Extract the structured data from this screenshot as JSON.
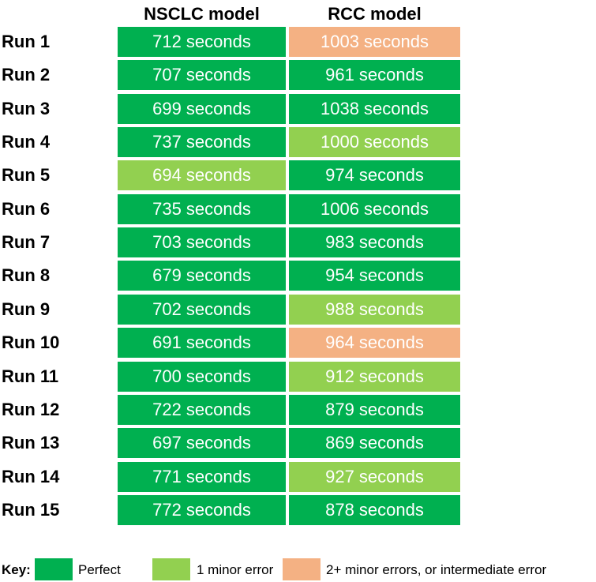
{
  "colors": {
    "perfect": "#00b050",
    "minor": "#92d050",
    "major": "#f4b183"
  },
  "chart_data": {
    "type": "table",
    "columns": [
      "NSCLC model",
      "RCC model"
    ],
    "rows": [
      {
        "label": "Run 1",
        "values": [
          "712 seconds",
          "1003 seconds"
        ],
        "status": [
          "perfect",
          "major"
        ]
      },
      {
        "label": "Run 2",
        "values": [
          "707 seconds",
          "961 seconds"
        ],
        "status": [
          "perfect",
          "perfect"
        ]
      },
      {
        "label": "Run 3",
        "values": [
          "699 seconds",
          "1038 seconds"
        ],
        "status": [
          "perfect",
          "perfect"
        ]
      },
      {
        "label": "Run 4",
        "values": [
          "737 seconds",
          "1000 seconds"
        ],
        "status": [
          "perfect",
          "minor"
        ]
      },
      {
        "label": "Run 5",
        "values": [
          "694 seconds",
          "974 seconds"
        ],
        "status": [
          "minor",
          "perfect"
        ]
      },
      {
        "label": "Run 6",
        "values": [
          "735 seconds",
          "1006 seconds"
        ],
        "status": [
          "perfect",
          "perfect"
        ]
      },
      {
        "label": "Run 7",
        "values": [
          "703 seconds",
          "983 seconds"
        ],
        "status": [
          "perfect",
          "perfect"
        ]
      },
      {
        "label": "Run 8",
        "values": [
          "679 seconds",
          "954 seconds"
        ],
        "status": [
          "perfect",
          "perfect"
        ]
      },
      {
        "label": "Run 9",
        "values": [
          "702 seconds",
          "988 seconds"
        ],
        "status": [
          "perfect",
          "minor"
        ]
      },
      {
        "label": "Run 10",
        "values": [
          "691 seconds",
          "964 seconds"
        ],
        "status": [
          "perfect",
          "major"
        ]
      },
      {
        "label": "Run 11",
        "values": [
          "700 seconds",
          "912 seconds"
        ],
        "status": [
          "perfect",
          "minor"
        ]
      },
      {
        "label": "Run 12",
        "values": [
          "722 seconds",
          "879 seconds"
        ],
        "status": [
          "perfect",
          "perfect"
        ]
      },
      {
        "label": "Run 13",
        "values": [
          "697 seconds",
          "869 seconds"
        ],
        "status": [
          "perfect",
          "perfect"
        ]
      },
      {
        "label": "Run 14",
        "values": [
          "771 seconds",
          "927 seconds"
        ],
        "status": [
          "perfect",
          "minor"
        ]
      },
      {
        "label": "Run 15",
        "values": [
          "772 seconds",
          "878 seconds"
        ],
        "status": [
          "perfect",
          "perfect"
        ]
      }
    ],
    "legend": {
      "title": "Key:",
      "entries": [
        {
          "status": "perfect",
          "label": "Perfect"
        },
        {
          "status": "minor",
          "label": "1 minor error"
        },
        {
          "status": "major",
          "label": "2+ minor errors, or intermediate error"
        }
      ]
    }
  }
}
